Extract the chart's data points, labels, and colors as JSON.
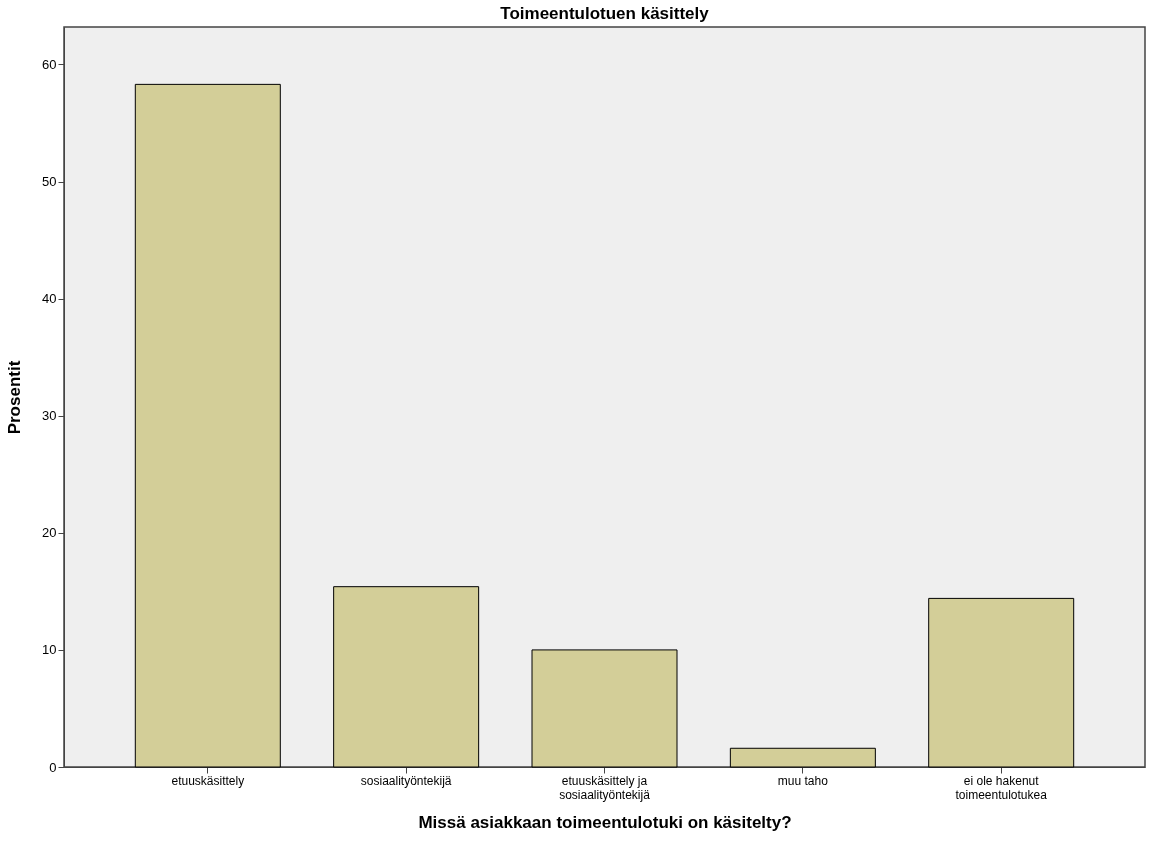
{
  "chart_data": {
    "type": "bar",
    "title": "Toimeentulotuen käsittely",
    "xlabel": "Missä asiakkaan toimeentulotuki on käsitelty?",
    "ylabel": "Prosentit",
    "categories": [
      "etuuskäsittely",
      "sosiaalityöntekijä",
      "etuuskäsittely ja\nsosiaalityöntekijä",
      "muu taho",
      "ei ole hakenut\ntoimeentulotukea"
    ],
    "values": [
      58.3,
      15.4,
      10.0,
      1.6,
      14.4
    ],
    "color": "#d3ce98",
    "ylim": [
      0,
      63.2
    ],
    "yticks": [
      0,
      10,
      20,
      30,
      40,
      50,
      60
    ],
    "grid": false
  }
}
